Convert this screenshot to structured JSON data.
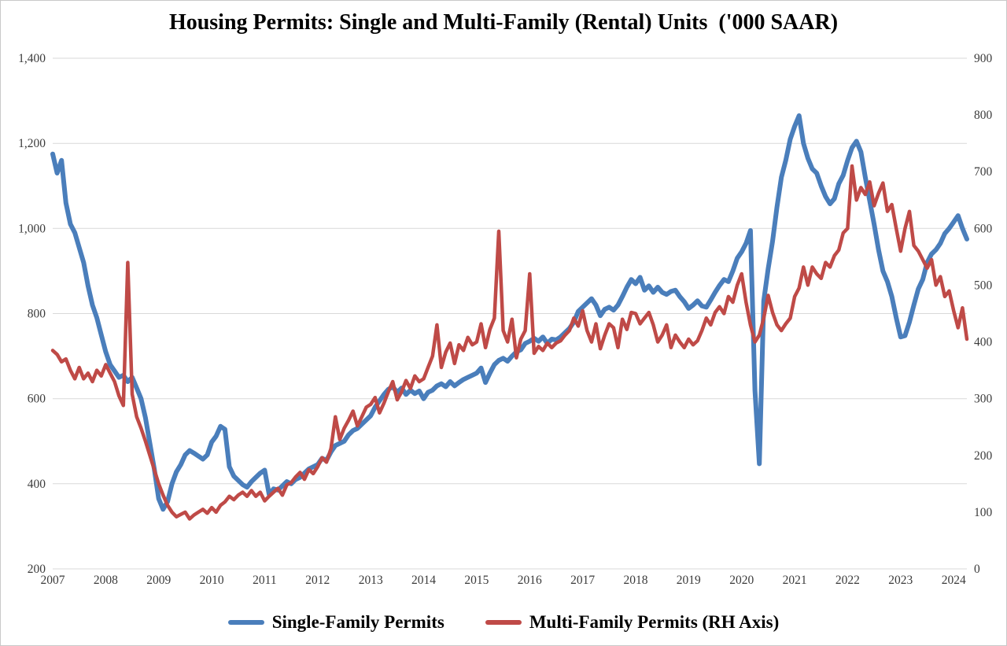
{
  "title": "Housing Permits: Single and Multi-Family (Rental) Units  ('000 SAAR)",
  "legend": [
    {
      "label": "Single-Family Permits",
      "color": "#4a7ebb"
    },
    {
      "label": "Multi-Family Permits (RH Axis)",
      "color": "#bf4a47"
    }
  ],
  "chart_data": {
    "type": "line",
    "title": "Housing Permits: Single and Multi-Family (Rental) Units ('000 SAAR)",
    "frequency": "monthly",
    "x_start": "2007-01",
    "x_end": "2024-04",
    "x_tick_labels": [
      "2007",
      "2008",
      "2009",
      "2010",
      "2011",
      "2012",
      "2013",
      "2014",
      "2015",
      "2016",
      "2017",
      "2018",
      "2019",
      "2020",
      "2021",
      "2022",
      "2023",
      "2024"
    ],
    "left_axis": {
      "min": 200,
      "max": 1400,
      "tick_step": 200,
      "tick_labels": [
        "1,400",
        "1,200",
        "1,000",
        "800",
        "600",
        "400",
        "200"
      ]
    },
    "right_axis": {
      "min": 0,
      "max": 900,
      "tick_step": 100,
      "tick_labels": [
        "900",
        "800",
        "700",
        "600",
        "500",
        "400",
        "300",
        "200",
        "100",
        "0"
      ]
    },
    "grid": "horizontal",
    "legend_position": "bottom",
    "series": [
      {
        "name": "Single-Family Permits",
        "axis": "left",
        "color": "#4a7ebb",
        "line_width": 6,
        "values": [
          1175,
          1130,
          1160,
          1060,
          1010,
          990,
          955,
          920,
          865,
          820,
          790,
          750,
          710,
          680,
          665,
          650,
          655,
          640,
          650,
          625,
          600,
          555,
          495,
          435,
          365,
          340,
          358,
          400,
          428,
          445,
          468,
          478,
          472,
          465,
          458,
          468,
          498,
          512,
          535,
          528,
          440,
          418,
          408,
          398,
          392,
          405,
          415,
          425,
          432,
          375,
          388,
          385,
          395,
          405,
          400,
          410,
          415,
          425,
          435,
          440,
          445,
          460,
          455,
          475,
          490,
          495,
          500,
          515,
          525,
          530,
          540,
          550,
          560,
          580,
          595,
          610,
          622,
          628,
          615,
          625,
          610,
          620,
          612,
          618,
          600,
          615,
          620,
          630,
          635,
          628,
          640,
          630,
          638,
          645,
          650,
          655,
          660,
          672,
          638,
          660,
          680,
          690,
          695,
          688,
          700,
          710,
          715,
          730,
          735,
          742,
          735,
          745,
          730,
          740,
          738,
          745,
          755,
          765,
          780,
          805,
          815,
          825,
          835,
          820,
          795,
          810,
          815,
          808,
          820,
          840,
          862,
          880,
          870,
          885,
          855,
          865,
          850,
          862,
          850,
          845,
          852,
          855,
          840,
          828,
          812,
          820,
          830,
          818,
          815,
          832,
          850,
          866,
          880,
          875,
          900,
          930,
          945,
          965,
          995,
          620,
          447,
          830,
          905,
          970,
          1050,
          1120,
          1160,
          1210,
          1240,
          1265,
          1200,
          1165,
          1140,
          1130,
          1100,
          1075,
          1058,
          1070,
          1105,
          1125,
          1160,
          1190,
          1205,
          1180,
          1120,
          1065,
          1010,
          950,
          900,
          875,
          840,
          790,
          745,
          748,
          780,
          820,
          858,
          880,
          920,
          940,
          950,
          965,
          988,
          1000,
          1015,
          1030,
          1000,
          975
        ]
      },
      {
        "name": "Multi-Family Permits (RH Axis)",
        "axis": "right",
        "color": "#bf4a47",
        "line_width": 4.5,
        "values": [
          385,
          378,
          365,
          370,
          350,
          335,
          355,
          335,
          345,
          330,
          350,
          340,
          360,
          345,
          330,
          305,
          288,
          540,
          308,
          268,
          248,
          225,
          200,
          175,
          150,
          130,
          112,
          100,
          92,
          96,
          100,
          88,
          95,
          100,
          105,
          98,
          108,
          100,
          112,
          118,
          128,
          122,
          130,
          135,
          128,
          138,
          128,
          135,
          120,
          128,
          135,
          142,
          130,
          148,
          152,
          162,
          170,
          158,
          175,
          168,
          180,
          196,
          188,
          212,
          268,
          228,
          248,
          262,
          278,
          252,
          268,
          285,
          290,
          302,
          275,
          292,
          312,
          330,
          298,
          312,
          332,
          318,
          340,
          330,
          335,
          355,
          375,
          430,
          355,
          382,
          398,
          362,
          395,
          385,
          408,
          395,
          400,
          432,
          390,
          422,
          442,
          595,
          420,
          400,
          440,
          372,
          405,
          420,
          520,
          380,
          392,
          385,
          398,
          390,
          398,
          402,
          412,
          420,
          442,
          428,
          455,
          420,
          400,
          432,
          388,
          412,
          432,
          425,
          390,
          440,
          422,
          452,
          450,
          432,
          442,
          452,
          430,
          400,
          412,
          430,
          390,
          412,
          400,
          390,
          405,
          395,
          402,
          420,
          442,
          430,
          452,
          462,
          450,
          480,
          470,
          500,
          520,
          470,
          430,
          400,
          412,
          442,
          482,
          452,
          430,
          420,
          432,
          442,
          480,
          495,
          532,
          500,
          532,
          520,
          512,
          540,
          532,
          552,
          562,
          592,
          600,
          710,
          650,
          672,
          660,
          682,
          640,
          662,
          680,
          630,
          642,
          600,
          560,
          600,
          630,
          570,
          560,
          545,
          530,
          545,
          500,
          515,
          480,
          490,
          455,
          425,
          460,
          405
        ]
      }
    ]
  }
}
